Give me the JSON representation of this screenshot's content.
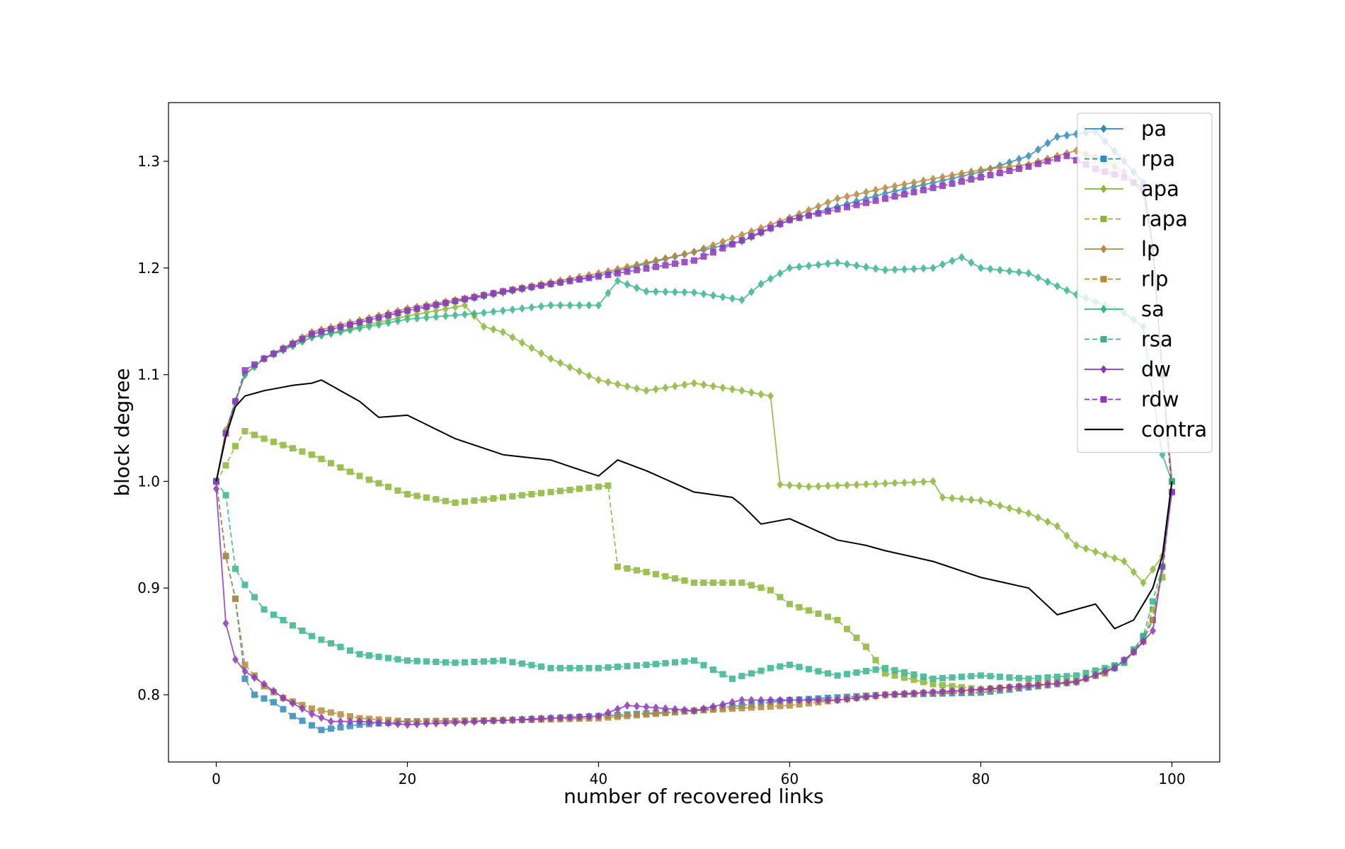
{
  "chart_data": {
    "type": "line",
    "title": "",
    "xlabel": "number of recovered links",
    "ylabel": "block degree",
    "xlim": [
      -5,
      105
    ],
    "ylim": [
      0.737,
      1.355
    ],
    "xticks": [
      0,
      20,
      40,
      60,
      80,
      100
    ],
    "xtick_labels": [
      "0",
      "20",
      "40",
      "60",
      "80",
      "100"
    ],
    "yticks": [
      0.8,
      0.9,
      1.0,
      1.1,
      1.2,
      1.3
    ],
    "ytick_labels": [
      "0.8",
      "0.9",
      "1.0",
      "1.1",
      "1.2",
      "1.3"
    ],
    "grid": false,
    "legend_position": "upper-right",
    "series": [
      {
        "name": "pa",
        "color": "#2f8bbf",
        "style": "solid",
        "marker": "diamond",
        "knots": [
          [
            0,
            1.0
          ],
          [
            1,
            1.045
          ],
          [
            2,
            1.075
          ],
          [
            3,
            1.1
          ],
          [
            5,
            1.115
          ],
          [
            10,
            1.138
          ],
          [
            20,
            1.16
          ],
          [
            30,
            1.177
          ],
          [
            40,
            1.193
          ],
          [
            50,
            1.215
          ],
          [
            55,
            1.225
          ],
          [
            60,
            1.245
          ],
          [
            70,
            1.27
          ],
          [
            80,
            1.29
          ],
          [
            85,
            1.305
          ],
          [
            88,
            1.323
          ],
          [
            92,
            1.328
          ],
          [
            95,
            1.3
          ],
          [
            97,
            1.28
          ],
          [
            98,
            1.22
          ],
          [
            99,
            1.1
          ],
          [
            100,
            1.0
          ]
        ]
      },
      {
        "name": "rpa",
        "color": "#2f8bbf",
        "style": "dashed",
        "marker": "square",
        "knots": [
          [
            0,
            1.0
          ],
          [
            1,
            0.93
          ],
          [
            2,
            0.89
          ],
          [
            3,
            0.815
          ],
          [
            4,
            0.8
          ],
          [
            6,
            0.793
          ],
          [
            8,
            0.78
          ],
          [
            11,
            0.767
          ],
          [
            15,
            0.772
          ],
          [
            20,
            0.775
          ],
          [
            30,
            0.776
          ],
          [
            40,
            0.78
          ],
          [
            50,
            0.785
          ],
          [
            60,
            0.795
          ],
          [
            70,
            0.8
          ],
          [
            80,
            0.802
          ],
          [
            90,
            0.812
          ],
          [
            94,
            0.825
          ],
          [
            96,
            0.84
          ],
          [
            98,
            0.87
          ],
          [
            99,
            0.92
          ],
          [
            100,
            1.0
          ]
        ]
      },
      {
        "name": "apa",
        "color": "#8ab735",
        "style": "solid",
        "marker": "diamond",
        "knots": [
          [
            0,
            1.0
          ],
          [
            1,
            1.045
          ],
          [
            2,
            1.075
          ],
          [
            3,
            1.1
          ],
          [
            5,
            1.115
          ],
          [
            10,
            1.135
          ],
          [
            20,
            1.155
          ],
          [
            26,
            1.165
          ],
          [
            28,
            1.145
          ],
          [
            30,
            1.14
          ],
          [
            35,
            1.115
          ],
          [
            40,
            1.095
          ],
          [
            45,
            1.085
          ],
          [
            50,
            1.092
          ],
          [
            55,
            1.085
          ],
          [
            58,
            1.08
          ],
          [
            59,
            0.997
          ],
          [
            62,
            0.995
          ],
          [
            70,
            0.998
          ],
          [
            75,
            1.0
          ],
          [
            76,
            0.985
          ],
          [
            80,
            0.982
          ],
          [
            85,
            0.97
          ],
          [
            88,
            0.958
          ],
          [
            90,
            0.94
          ],
          [
            95,
            0.925
          ],
          [
            97,
            0.905
          ],
          [
            99,
            0.93
          ],
          [
            100,
            1.0
          ]
        ]
      },
      {
        "name": "rapa",
        "color": "#8ab735",
        "style": "dashed",
        "marker": "square",
        "knots": [
          [
            0,
            1.0
          ],
          [
            1,
            1.015
          ],
          [
            2,
            1.033
          ],
          [
            3,
            1.047
          ],
          [
            5,
            1.04
          ],
          [
            10,
            1.025
          ],
          [
            15,
            1.005
          ],
          [
            20,
            0.988
          ],
          [
            25,
            0.98
          ],
          [
            30,
            0.985
          ],
          [
            35,
            0.99
          ],
          [
            41,
            0.996
          ],
          [
            42,
            0.92
          ],
          [
            45,
            0.915
          ],
          [
            50,
            0.905
          ],
          [
            55,
            0.905
          ],
          [
            58,
            0.898
          ],
          [
            60,
            0.885
          ],
          [
            65,
            0.87
          ],
          [
            68,
            0.845
          ],
          [
            70,
            0.82
          ],
          [
            75,
            0.81
          ],
          [
            80,
            0.805
          ],
          [
            90,
            0.812
          ],
          [
            95,
            0.83
          ],
          [
            97,
            0.85
          ],
          [
            99,
            0.91
          ],
          [
            100,
            1.0
          ]
        ]
      },
      {
        "name": "lp",
        "color": "#b8893a",
        "style": "solid",
        "marker": "diamond",
        "knots": [
          [
            0,
            1.0
          ],
          [
            1,
            1.048
          ],
          [
            2,
            1.075
          ],
          [
            3,
            1.1
          ],
          [
            5,
            1.115
          ],
          [
            10,
            1.14
          ],
          [
            20,
            1.162
          ],
          [
            30,
            1.178
          ],
          [
            40,
            1.195
          ],
          [
            50,
            1.215
          ],
          [
            60,
            1.247
          ],
          [
            65,
            1.265
          ],
          [
            70,
            1.275
          ],
          [
            80,
            1.292
          ],
          [
            85,
            1.297
          ],
          [
            88,
            1.305
          ],
          [
            90,
            1.31
          ],
          [
            93,
            1.3
          ],
          [
            95,
            1.29
          ],
          [
            97,
            1.27
          ],
          [
            98,
            1.22
          ],
          [
            99,
            1.1
          ],
          [
            100,
            1.0
          ]
        ]
      },
      {
        "name": "rlp",
        "color": "#b8893a",
        "style": "dashed",
        "marker": "square",
        "knots": [
          [
            0,
            1.0
          ],
          [
            1,
            0.93
          ],
          [
            2,
            0.89
          ],
          [
            3,
            0.828
          ],
          [
            5,
            0.808
          ],
          [
            7,
            0.797
          ],
          [
            10,
            0.787
          ],
          [
            15,
            0.778
          ],
          [
            20,
            0.775
          ],
          [
            30,
            0.776
          ],
          [
            40,
            0.778
          ],
          [
            50,
            0.785
          ],
          [
            60,
            0.79
          ],
          [
            70,
            0.8
          ],
          [
            80,
            0.804
          ],
          [
            90,
            0.813
          ],
          [
            93,
            0.82
          ],
          [
            95,
            0.832
          ],
          [
            97,
            0.85
          ],
          [
            98,
            0.87
          ],
          [
            99,
            0.92
          ],
          [
            100,
            1.0
          ]
        ]
      },
      {
        "name": "sa",
        "color": "#33b68a",
        "style": "solid",
        "marker": "diamond",
        "knots": [
          [
            0,
            1.0
          ],
          [
            1,
            1.045
          ],
          [
            2,
            1.075
          ],
          [
            3,
            1.1
          ],
          [
            5,
            1.115
          ],
          [
            10,
            1.135
          ],
          [
            20,
            1.152
          ],
          [
            28,
            1.158
          ],
          [
            35,
            1.165
          ],
          [
            40,
            1.165
          ],
          [
            42,
            1.188
          ],
          [
            45,
            1.178
          ],
          [
            50,
            1.177
          ],
          [
            55,
            1.17
          ],
          [
            57,
            1.185
          ],
          [
            60,
            1.2
          ],
          [
            65,
            1.205
          ],
          [
            70,
            1.198
          ],
          [
            75,
            1.2
          ],
          [
            78,
            1.21
          ],
          [
            80,
            1.2
          ],
          [
            85,
            1.195
          ],
          [
            90,
            1.175
          ],
          [
            95,
            1.158
          ],
          [
            97,
            1.145
          ],
          [
            98,
            1.08
          ],
          [
            99,
            1.025
          ],
          [
            100,
            1.0
          ]
        ]
      },
      {
        "name": "rsa",
        "color": "#33b68a",
        "style": "dashed",
        "marker": "square",
        "knots": [
          [
            0,
            1.0
          ],
          [
            1,
            0.987
          ],
          [
            2,
            0.918
          ],
          [
            3,
            0.903
          ],
          [
            5,
            0.88
          ],
          [
            10,
            0.855
          ],
          [
            15,
            0.838
          ],
          [
            20,
            0.832
          ],
          [
            25,
            0.83
          ],
          [
            30,
            0.832
          ],
          [
            35,
            0.825
          ],
          [
            40,
            0.825
          ],
          [
            45,
            0.828
          ],
          [
            50,
            0.832
          ],
          [
            54,
            0.815
          ],
          [
            58,
            0.825
          ],
          [
            60,
            0.828
          ],
          [
            65,
            0.818
          ],
          [
            70,
            0.825
          ],
          [
            75,
            0.815
          ],
          [
            80,
            0.818
          ],
          [
            85,
            0.815
          ],
          [
            90,
            0.818
          ],
          [
            93,
            0.825
          ],
          [
            95,
            0.83
          ],
          [
            97,
            0.855
          ],
          [
            99,
            0.92
          ],
          [
            100,
            1.0
          ]
        ]
      },
      {
        "name": "dw",
        "color": "#8f35bf",
        "style": "solid",
        "marker": "diamond",
        "knots": [
          [
            0,
            0.993
          ],
          [
            1,
            0.867
          ],
          [
            2,
            0.833
          ],
          [
            3,
            0.822
          ],
          [
            5,
            0.81
          ],
          [
            7,
            0.797
          ],
          [
            10,
            0.782
          ],
          [
            12,
            0.775
          ],
          [
            15,
            0.775
          ],
          [
            20,
            0.772
          ],
          [
            30,
            0.776
          ],
          [
            40,
            0.78
          ],
          [
            43,
            0.79
          ],
          [
            50,
            0.785
          ],
          [
            55,
            0.795
          ],
          [
            60,
            0.795
          ],
          [
            65,
            0.795
          ],
          [
            70,
            0.8
          ],
          [
            80,
            0.805
          ],
          [
            90,
            0.812
          ],
          [
            94,
            0.825
          ],
          [
            96,
            0.84
          ],
          [
            98,
            0.86
          ],
          [
            99,
            0.92
          ],
          [
            100,
            0.99
          ]
        ]
      },
      {
        "name": "rdw",
        "color": "#8f35bf",
        "style": "dashed",
        "marker": "square",
        "knots": [
          [
            0,
            1.0
          ],
          [
            1,
            1.045
          ],
          [
            2,
            1.075
          ],
          [
            3,
            1.104
          ],
          [
            5,
            1.115
          ],
          [
            10,
            1.138
          ],
          [
            20,
            1.16
          ],
          [
            30,
            1.178
          ],
          [
            40,
            1.192
          ],
          [
            50,
            1.207
          ],
          [
            60,
            1.245
          ],
          [
            70,
            1.265
          ],
          [
            80,
            1.285
          ],
          [
            85,
            1.295
          ],
          [
            89,
            1.305
          ],
          [
            92,
            1.293
          ],
          [
            95,
            1.285
          ],
          [
            97,
            1.275
          ],
          [
            98,
            1.22
          ],
          [
            99,
            1.1
          ],
          [
            100,
            0.99
          ]
        ]
      },
      {
        "name": "contra",
        "color": "#000000",
        "style": "solid",
        "marker": "none",
        "knots": [
          [
            0,
            1.0
          ],
          [
            1,
            1.042
          ],
          [
            2,
            1.07
          ],
          [
            3,
            1.08
          ],
          [
            5,
            1.085
          ],
          [
            8,
            1.09
          ],
          [
            10,
            1.092
          ],
          [
            11,
            1.095
          ],
          [
            13,
            1.085
          ],
          [
            15,
            1.075
          ],
          [
            17,
            1.06
          ],
          [
            20,
            1.062
          ],
          [
            25,
            1.04
          ],
          [
            30,
            1.025
          ],
          [
            35,
            1.02
          ],
          [
            40,
            1.005
          ],
          [
            42,
            1.02
          ],
          [
            45,
            1.01
          ],
          [
            50,
            0.99
          ],
          [
            54,
            0.985
          ],
          [
            55,
            0.978
          ],
          [
            57,
            0.96
          ],
          [
            60,
            0.965
          ],
          [
            65,
            0.945
          ],
          [
            68,
            0.94
          ],
          [
            70,
            0.935
          ],
          [
            75,
            0.925
          ],
          [
            80,
            0.91
          ],
          [
            85,
            0.9
          ],
          [
            88,
            0.875
          ],
          [
            92,
            0.885
          ],
          [
            94,
            0.862
          ],
          [
            96,
            0.87
          ],
          [
            98,
            0.9
          ],
          [
            99,
            0.93
          ],
          [
            100,
            1.0
          ]
        ]
      }
    ]
  }
}
